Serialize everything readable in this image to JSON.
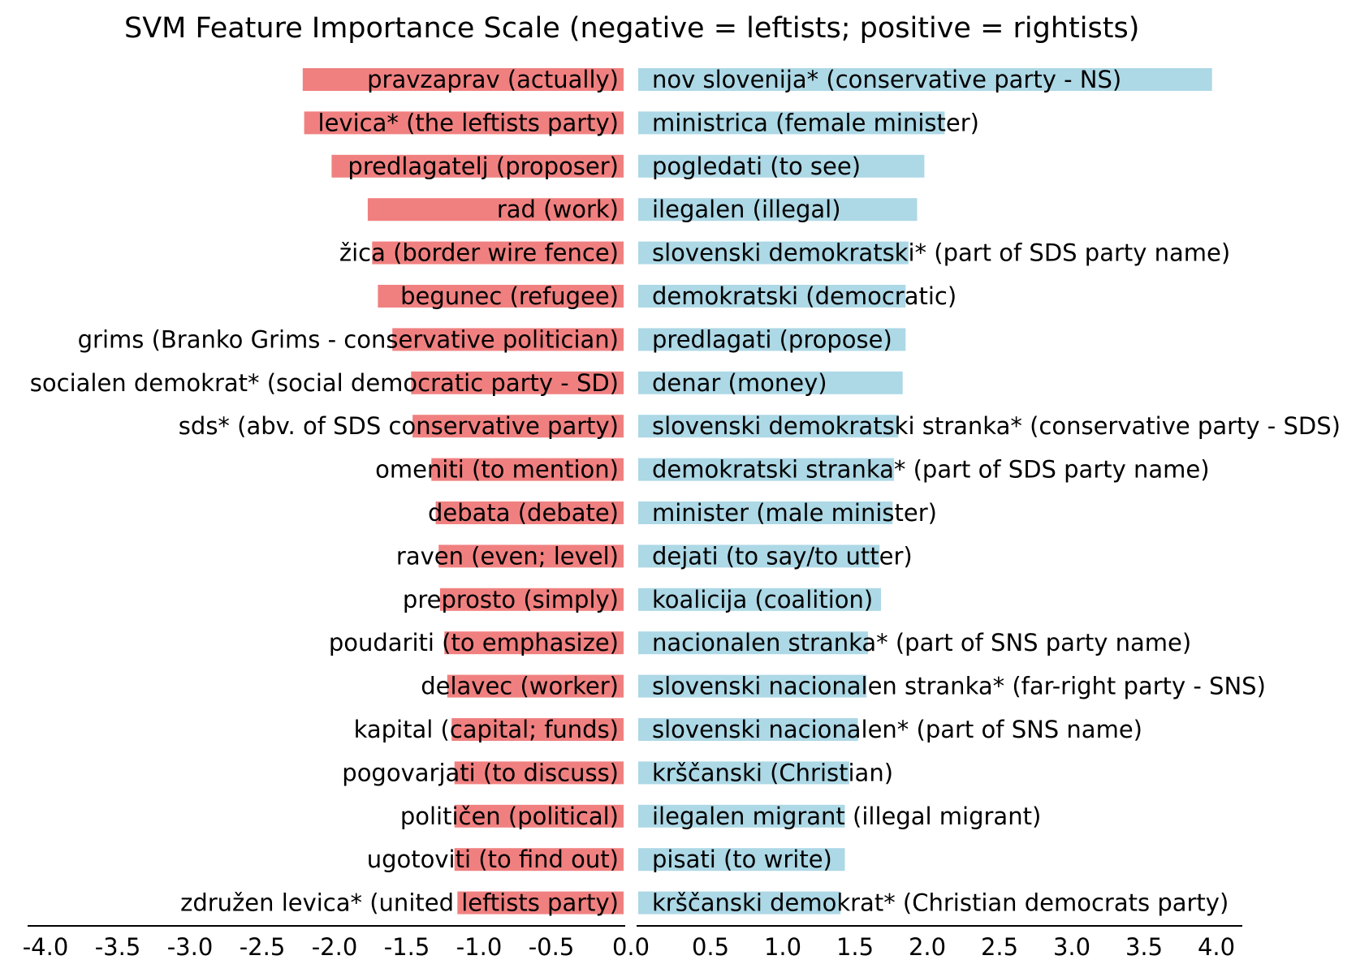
{
  "chart_data": {
    "type": "bar",
    "title": "SVM Feature Importance Scale (negative = leftists; positive = rightists)",
    "xlim": [
      -4.0,
      4.0
    ],
    "x_ticks": [
      "-4.0",
      "-3.5",
      "-3.0",
      "-2.5",
      "-2.0",
      "-1.5",
      "-1.0",
      "-0.5",
      "0.0",
      "0.5",
      "1.0",
      "1.5",
      "2.0",
      "2.5",
      "3.0",
      "3.5",
      "4.0"
    ],
    "grid": false,
    "colors": {
      "left": "#f08080",
      "right": "#add8e6"
    },
    "series": [
      {
        "name": "leftists",
        "categories": [
          "pravzaprav (actually)",
          "levica* (the leftists party)",
          "predlagatelj (proposer)",
          "rad (work)",
          "žica (border wire fence)",
          "begunec (refugee)",
          "grims (Branko Grims - conservative politician)",
          "socialen demokrat* (social democratic party - SD)",
          "sds* (abv. of SDS conservative party)",
          "omeniti (to mention)",
          "debata (debate)",
          "raven (even; level)",
          "preprosto (simply)",
          "poudariti (to emphasize)",
          "delavec (worker)",
          "kapital (capital; funds)",
          "pogovarjati (to discuss)",
          "političen (political)",
          "ugotoviti (to find out)",
          "združen levica* (united leftists party)"
        ],
        "values": [
          -2.22,
          -2.21,
          -2.02,
          -1.77,
          -1.74,
          -1.7,
          -1.6,
          -1.47,
          -1.46,
          -1.33,
          -1.3,
          -1.28,
          -1.27,
          -1.24,
          -1.22,
          -1.19,
          -1.17,
          -1.17,
          -1.17,
          -1.15
        ]
      },
      {
        "name": "rightists",
        "categories": [
          "nov slovenija* (conservative party - NS)",
          "ministrica (female minister)",
          "pogledati (to see)",
          "ilegalen (illegal)",
          "slovenski demokratski* (part of SDS party name)",
          "demokratski (democratic)",
          "predlagati (propose)",
          "denar (money)",
          "slovenski demokratski stranka* (conservative party - SDS)",
          "demokratski stranka* (part of SDS party name)",
          "minister (male minister)",
          "dejati (to say/to utter)",
          "koalicija (coalition)",
          "nacionalen stranka* (part of SNS party name)",
          "slovenski nacionalen stranka* (far-right party - SNS)",
          "slovenski nacionalen* (part of SNS name)",
          "krščanski (Christian)",
          "ilegalen migrant (illegal migrant)",
          "pisati (to write)",
          "krščanski demokrat* (Christian democrats party)"
        ],
        "values": [
          3.97,
          2.12,
          1.98,
          1.93,
          1.87,
          1.85,
          1.85,
          1.83,
          1.8,
          1.77,
          1.76,
          1.67,
          1.68,
          1.59,
          1.58,
          1.52,
          1.46,
          1.43,
          1.43,
          1.4
        ]
      }
    ]
  }
}
